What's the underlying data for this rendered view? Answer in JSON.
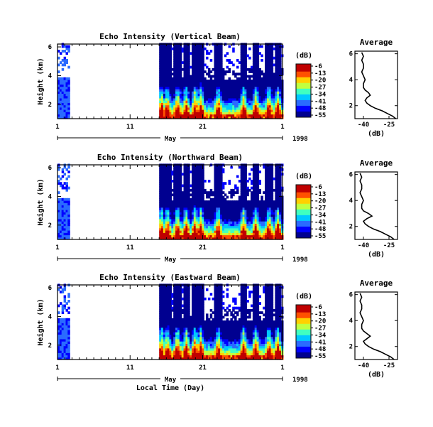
{
  "figure": {
    "xlabel": "Local Time (Day)",
    "month_label": "May",
    "year_label": "1998",
    "ylabel": "Height (km)",
    "colorbar_unit": "(dB)",
    "profile_title": "Average",
    "profile_xlabel": "(dB)"
  },
  "chart_data": [
    {
      "type": "heatmap",
      "title": "Echo Intensity (Vertical Beam)",
      "ylabel": "Height (km)",
      "xlabel": "",
      "x_tick_labels": [
        "1",
        "11",
        "21",
        "1"
      ],
      "y_tick_labels": [
        "2",
        "4",
        "6"
      ],
      "xlim_days": [
        1,
        32
      ],
      "ylim_km": [
        1.0,
        6.2
      ],
      "colorbar_ticks": [
        "-6",
        "-13",
        "-20",
        "-27",
        "-34",
        "-41",
        "-48",
        "-55"
      ],
      "colorbar_range_db": [
        -55,
        -6
      ],
      "colormap": [
        "#000090",
        "#0000ff",
        "#2a6bff",
        "#00c8ff",
        "#40ffc0",
        "#c0ff40",
        "#ffd000",
        "#ff5000",
        "#c00000"
      ],
      "data_gaps_days": [
        [
          2.6,
          14.8
        ]
      ],
      "description": "Time-height intensity: strong low-level echoes (-20 to -6 dB) below ~1.5 km, layers near 3 km, tall vertical plumes near days 16, 18, 21, 26, 30"
    },
    {
      "type": "heatmap",
      "title": "Echo Intensity (Northward Beam)",
      "ylabel": "Height (km)",
      "xlabel": "",
      "x_tick_labels": [
        "1",
        "11",
        "21",
        "1"
      ],
      "y_tick_labels": [
        "2",
        "4",
        "6"
      ],
      "xlim_days": [
        1,
        32
      ],
      "ylim_km": [
        1.0,
        6.2
      ],
      "colorbar_ticks": [
        "-6",
        "-13",
        "-20",
        "-27",
        "-34",
        "-41",
        "-48",
        "-55"
      ],
      "colorbar_range_db": [
        -55,
        -6
      ],
      "data_gaps_days": [
        [
          2.6,
          14.8
        ]
      ]
    },
    {
      "type": "heatmap",
      "title": "Echo Intensity (Eastward Beam)",
      "ylabel": "Height (km)",
      "xlabel": "Local Time (Day)",
      "x_tick_labels": [
        "1",
        "11",
        "21",
        "1"
      ],
      "y_tick_labels": [
        "2",
        "4",
        "6"
      ],
      "xlim_days": [
        1,
        32
      ],
      "ylim_km": [
        1.0,
        6.2
      ],
      "colorbar_ticks": [
        "-6",
        "-13",
        "-20",
        "-27",
        "-34",
        "-41",
        "-48",
        "-55"
      ],
      "colorbar_range_db": [
        -55,
        -6
      ],
      "data_gaps_days": [
        [
          2.6,
          14.8
        ]
      ]
    },
    {
      "type": "line",
      "title": "Average",
      "xlabel": "(dB)",
      "x_tick_labels": [
        "-40",
        "-25"
      ],
      "y_tick_labels": [
        "2",
        "4",
        "6"
      ],
      "xlim_db": [
        -45,
        -20
      ],
      "ylim_km": [
        1.0,
        6.2
      ],
      "x": [
        -21,
        -23,
        -26,
        -29,
        -33,
        -36,
        -38,
        -39,
        -38,
        -36,
        -37,
        -39,
        -40,
        -40,
        -39,
        -40,
        -41,
        -40,
        -40,
        -41,
        -40,
        -41
      ],
      "y": [
        1.0,
        1.2,
        1.4,
        1.6,
        1.8,
        2.0,
        2.2,
        2.4,
        2.6,
        2.8,
        3.0,
        3.2,
        3.4,
        3.7,
        4.0,
        4.3,
        4.6,
        4.9,
        5.2,
        5.5,
        5.8,
        6.1
      ]
    },
    {
      "type": "line",
      "title": "Average",
      "xlabel": "(dB)",
      "x_tick_labels": [
        "-40",
        "-25"
      ],
      "y_tick_labels": [
        "2",
        "4",
        "6"
      ],
      "xlim_db": [
        -45,
        -20
      ],
      "ylim_km": [
        1.0,
        6.2
      ],
      "x": [
        -22,
        -24,
        -27,
        -30,
        -34,
        -37,
        -39,
        -40,
        -38,
        -35,
        -37,
        -40,
        -41,
        -41,
        -40,
        -41,
        -42,
        -41,
        -41,
        -42,
        -41,
        -42
      ],
      "y": [
        1.0,
        1.2,
        1.4,
        1.6,
        1.8,
        2.0,
        2.2,
        2.4,
        2.6,
        2.8,
        3.0,
        3.2,
        3.4,
        3.7,
        4.0,
        4.3,
        4.6,
        4.9,
        5.2,
        5.5,
        5.8,
        6.1
      ]
    },
    {
      "type": "line",
      "title": "Average",
      "xlabel": "(dB)",
      "x_tick_labels": [
        "-40",
        "-25"
      ],
      "y_tick_labels": [
        "2",
        "4",
        "6"
      ],
      "xlim_db": [
        -45,
        -20
      ],
      "ylim_km": [
        1.0,
        6.2
      ],
      "x": [
        -22,
        -24,
        -27,
        -30,
        -34,
        -37,
        -39,
        -40,
        -38,
        -36,
        -38,
        -40,
        -41,
        -41,
        -40,
        -41,
        -42,
        -41,
        -41,
        -42,
        -41,
        -42
      ],
      "y": [
        1.0,
        1.2,
        1.4,
        1.6,
        1.8,
        2.0,
        2.2,
        2.4,
        2.6,
        2.8,
        3.0,
        3.2,
        3.4,
        3.7,
        4.0,
        4.3,
        4.6,
        4.9,
        5.2,
        5.5,
        5.8,
        6.1
      ]
    }
  ]
}
